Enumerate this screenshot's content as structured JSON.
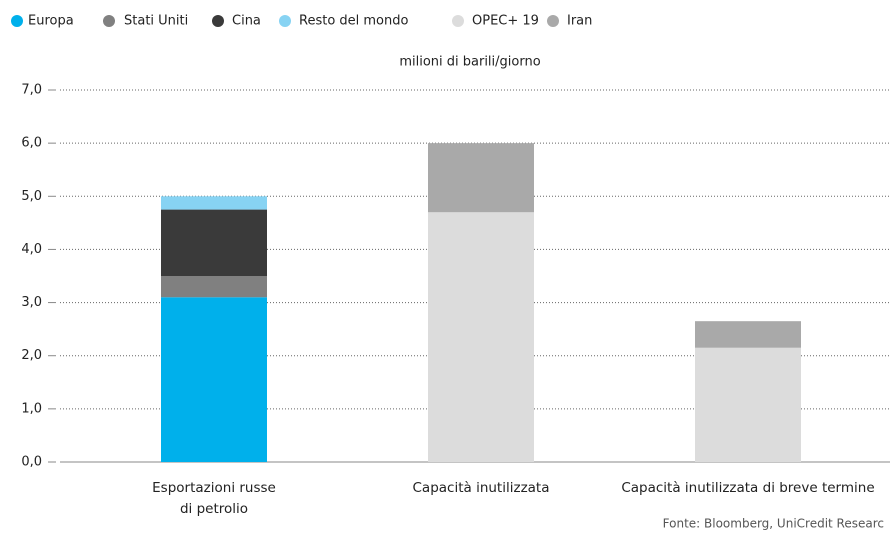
{
  "chart_data": {
    "type": "stacked_bar",
    "axis_label": "milioni di barili/giorno",
    "source": "Fonte: Bloomberg, UniCredit Researc",
    "categories": [
      "Esportazioni russe\ndi petrolio",
      "Capacità inutilizzata",
      "Capacità inutilizzata di breve termine"
    ],
    "series": [
      {
        "name": "Europa",
        "color": "#00b0eb",
        "values": [
          3.1,
          null,
          null
        ]
      },
      {
        "name": "Stati Uniti",
        "color": "#808080",
        "values": [
          0.4,
          null,
          null
        ]
      },
      {
        "name": "Cina",
        "color": "#3a3a3a",
        "values": [
          1.25,
          null,
          null
        ]
      },
      {
        "name": "Resto del mondo",
        "color": "#87d3f3",
        "values": [
          0.25,
          null,
          null
        ]
      },
      {
        "name": "OPEC+ 19",
        "color": "#dcdcdc",
        "values": [
          null,
          4.7,
          2.15
        ]
      },
      {
        "name": "Iran",
        "color": "#a9a9a9",
        "values": [
          null,
          1.3,
          0.5
        ]
      }
    ],
    "ylim": [
      0,
      7
    ],
    "yticks": [
      {
        "value": 0,
        "label": "0,0"
      },
      {
        "value": 1,
        "label": "1,0"
      },
      {
        "value": 2,
        "label": "2,0"
      },
      {
        "value": 3,
        "label": "3,0"
      },
      {
        "value": 4,
        "label": "4,0"
      },
      {
        "value": 5,
        "label": "5,0"
      },
      {
        "value": 6,
        "label": "6,0"
      },
      {
        "value": 7,
        "label": "7,0"
      }
    ],
    "grid": true
  }
}
